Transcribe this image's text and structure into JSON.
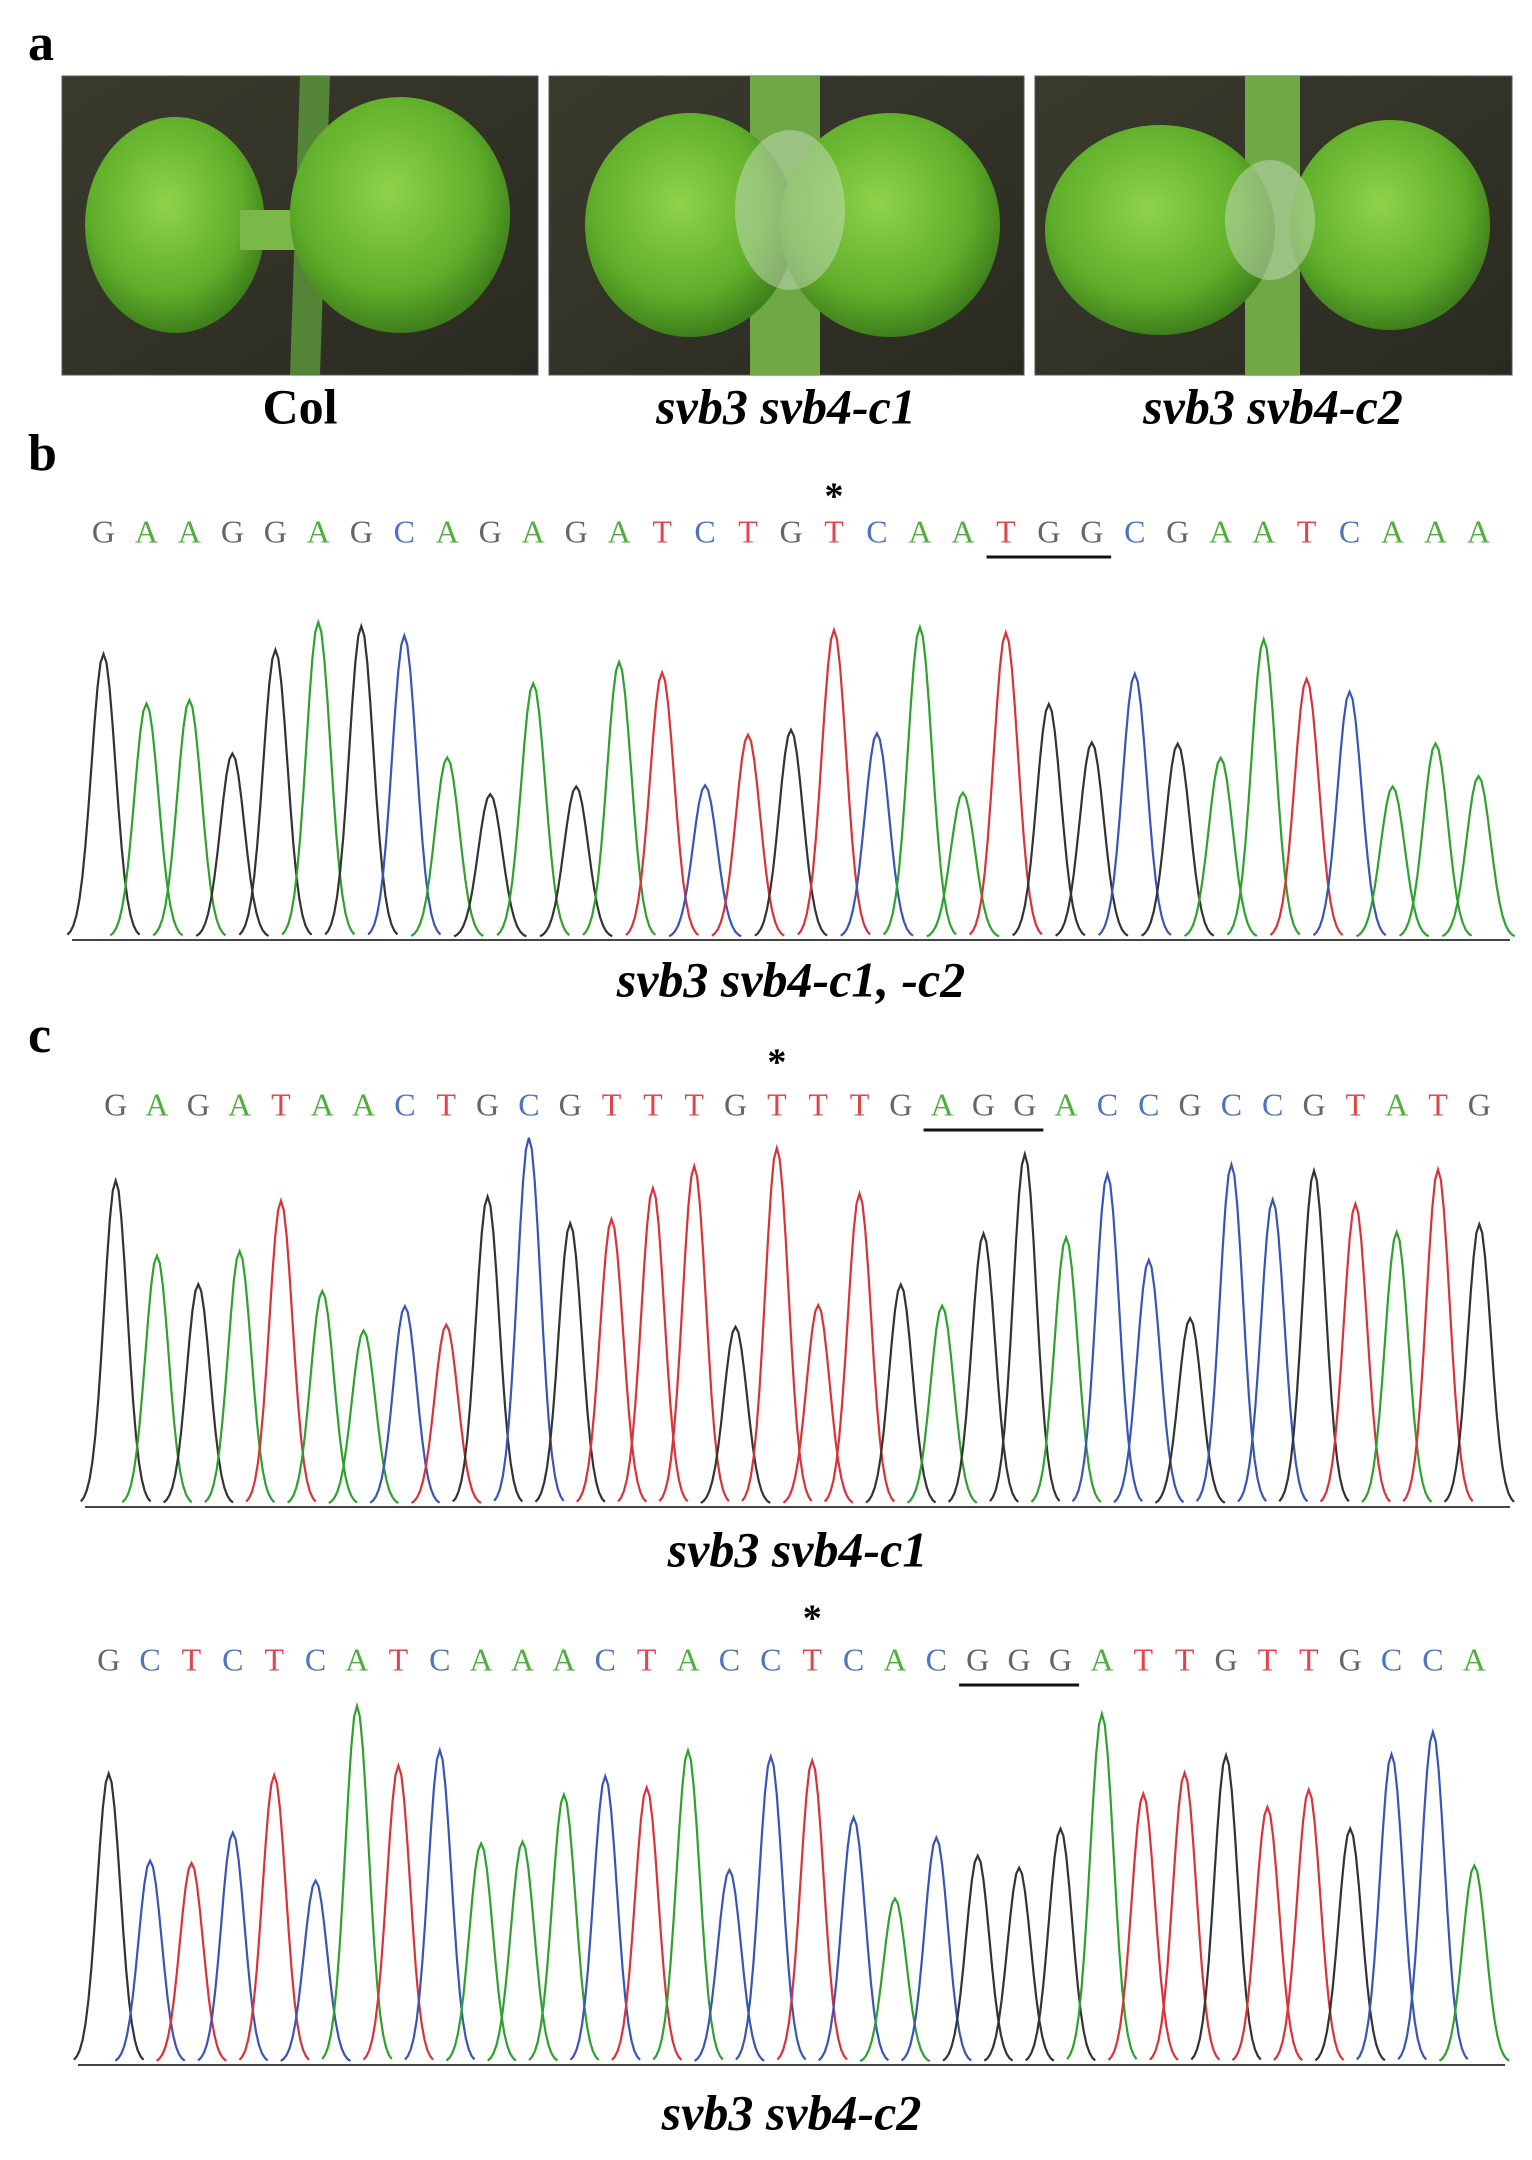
{
  "panel_a": {
    "label": "a",
    "images": [
      {
        "caption": "Col"
      },
      {
        "caption": "svb3 svb4-c1"
      },
      {
        "caption": "svb3 svb4-c2"
      }
    ]
  },
  "panel_b": {
    "label": "b",
    "asterisk": "*",
    "sequence": [
      "G",
      "A",
      "A",
      "G",
      "G",
      "A",
      "G",
      "C",
      "A",
      "G",
      "A",
      "G",
      "A",
      "T",
      "C",
      "T",
      "G",
      "T",
      "C",
      "A",
      "A",
      "T",
      "G",
      "G",
      "C",
      "G",
      "A",
      "A",
      "T",
      "C",
      "A",
      "A",
      "A"
    ],
    "caption": "svb3 svb4-c1, -c2"
  },
  "panel_c": {
    "label": "c",
    "traces": [
      {
        "asterisk": "*",
        "sequence": [
          "G",
          "A",
          "G",
          "A",
          "T",
          "A",
          "A",
          "C",
          "T",
          "G",
          "C",
          "G",
          "T",
          "T",
          "T",
          "G",
          "T",
          "T",
          "T",
          "G",
          "A",
          "G",
          "G",
          "A",
          "C",
          "C",
          "G",
          "C",
          "C",
          "G",
          "T",
          "A",
          "T",
          "G"
        ],
        "caption": "svb3 svb4-c1"
      },
      {
        "asterisk": "*",
        "sequence": [
          "G",
          "C",
          "T",
          "C",
          "T",
          "C",
          "A",
          "T",
          "C",
          "A",
          "A",
          "A",
          "C",
          "T",
          "A",
          "C",
          "C",
          "T",
          "C",
          "A",
          "C",
          "G",
          "G",
          "G",
          "A",
          "T",
          "T",
          "G",
          "T",
          "T",
          "G",
          "C",
          "C",
          "A"
        ],
        "caption": "svb3 svb4-c2"
      }
    ]
  }
}
